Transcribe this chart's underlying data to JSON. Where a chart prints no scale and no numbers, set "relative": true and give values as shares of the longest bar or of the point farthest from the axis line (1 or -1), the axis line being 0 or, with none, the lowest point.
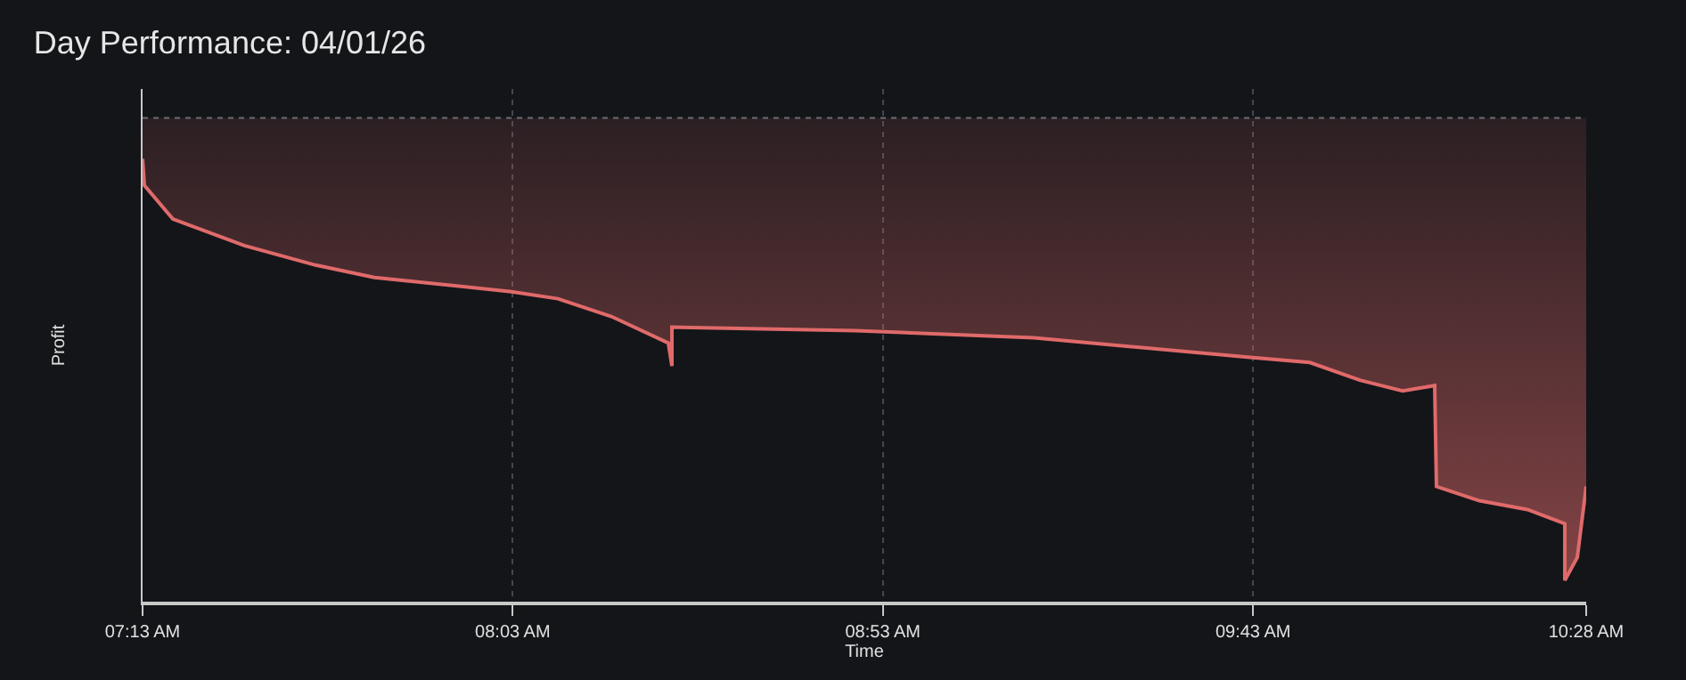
{
  "chart_data": {
    "type": "area",
    "title": "Day Performance: 04/01/26",
    "xlabel": "Time",
    "ylabel": "Profit",
    "relative": true,
    "x": [
      7.2167,
      7.2207,
      7.2849,
      7.4454,
      7.6059,
      7.7383,
      8.0472,
      8.1516,
      8.2719,
      8.4003,
      8.4084,
      8.4084,
      8.8216,
      9.2229,
      9.7044,
      9.8447,
      9.9571,
      10.0534,
      10.1256,
      10.1296,
      10.226,
      10.3343,
      10.4186,
      10.4186,
      10.4467,
      10.4667
    ],
    "series": [
      {
        "color": "#e06a6a",
        "values": [
          1.0,
          0.94,
          0.864,
          0.804,
          0.76,
          0.732,
          0.7,
          0.684,
          0.644,
          0.584,
          0.532,
          0.62,
          0.612,
          0.596,
          0.552,
          0.54,
          0.5,
          0.476,
          0.488,
          0.26,
          0.228,
          0.208,
          0.176,
          0.048,
          0.1,
          0.26
        ]
      }
    ],
    "xlim": [
      7.2167,
      10.4667
    ],
    "xticks": [
      {
        "value": 7.2167,
        "label": "07:13 AM"
      },
      {
        "value": 8.05,
        "label": "08:03 AM"
      },
      {
        "value": 8.8833,
        "label": "08:53 AM"
      },
      {
        "value": 9.7167,
        "label": "09:43 AM"
      },
      {
        "value": 10.4667,
        "label": "10:28 AM"
      }
    ],
    "ref_lines": [
      {
        "axis": "y",
        "value": 1.092,
        "label": null,
        "color": "#6b6e73",
        "line_style": "dotted"
      }
    ],
    "grid": "x"
  }
}
